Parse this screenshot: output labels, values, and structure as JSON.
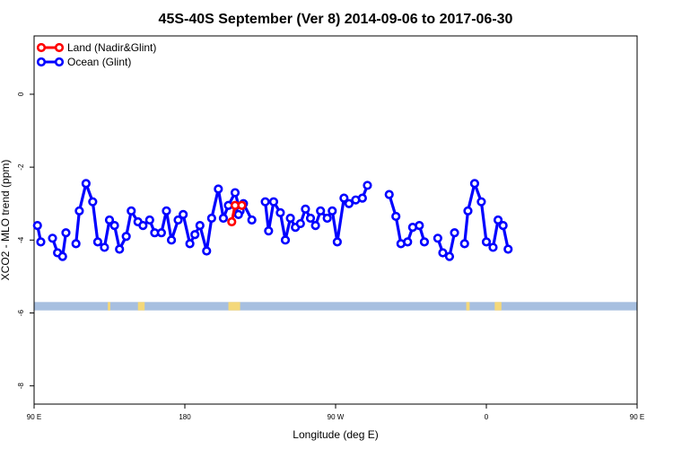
{
  "chart_data": {
    "type": "line",
    "title": "45S-40S September (Ver 8)   2014-09-06 to 2017-06-30",
    "xlabel": "Longitude (deg E)",
    "ylabel": "XCO2 - MLO trend (ppm)",
    "xlim": [
      90,
      450
    ],
    "ylim": [
      -8.5,
      1.6
    ],
    "x_ticks": [
      {
        "value": 90,
        "label": "90 E"
      },
      {
        "value": 180,
        "label": "180"
      },
      {
        "value": 270,
        "label": "90 W"
      },
      {
        "value": 360,
        "label": "0"
      },
      {
        "value": 450,
        "label": "90 E"
      },
      {
        "value": 540,
        "label": "180"
      }
    ],
    "y_ticks": [
      {
        "value": 0,
        "label": "0"
      },
      {
        "value": -2,
        "label": "-2"
      },
      {
        "value": -4,
        "label": "-4"
      },
      {
        "value": -6,
        "label": "-6"
      },
      {
        "value": -8,
        "label": "-8"
      }
    ],
    "legend_position": "top-left",
    "series": [
      {
        "name": "Land (Nadir&Glint)",
        "color": "#ff0000",
        "segments": [
          [
            [
              208,
              -3.5
            ],
            [
              210,
              -3.05
            ],
            [
              214,
              -3.05
            ]
          ]
        ]
      },
      {
        "name": "Ocean (Glint)",
        "color": "#0000ff",
        "segments": [
          [
            [
              92,
              -3.6
            ],
            [
              94,
              -4.05
            ]
          ],
          [
            [
              101,
              -3.95
            ],
            [
              104,
              -4.35
            ],
            [
              107,
              -4.45
            ],
            [
              109,
              -3.8
            ]
          ],
          [
            [
              115,
              -4.1
            ],
            [
              117,
              -3.2
            ],
            [
              121,
              -2.45
            ],
            [
              125,
              -2.95
            ],
            [
              128,
              -4.05
            ],
            [
              132,
              -4.2
            ],
            [
              135,
              -3.45
            ],
            [
              138,
              -3.6
            ],
            [
              141,
              -4.25
            ],
            [
              145,
              -3.9
            ],
            [
              148,
              -3.2
            ],
            [
              152,
              -3.5
            ],
            [
              155,
              -3.6
            ],
            [
              159,
              -3.45
            ],
            [
              162,
              -3.8
            ],
            [
              166,
              -3.8
            ],
            [
              169,
              -3.2
            ],
            [
              172,
              -4.0
            ],
            [
              176,
              -3.45
            ],
            [
              179,
              -3.3
            ],
            [
              183,
              -4.1
            ],
            [
              186,
              -3.85
            ],
            [
              189,
              -3.6
            ],
            [
              193,
              -4.3
            ],
            [
              196,
              -3.4
            ],
            [
              200,
              -2.6
            ],
            [
              203,
              -3.4
            ],
            [
              206,
              -3.05
            ],
            [
              210,
              -2.7
            ],
            [
              213,
              -3.2
            ]
          ],
          [
            [
              212,
              -3.3
            ],
            [
              215,
              -3.0
            ],
            [
              220,
              -3.45
            ]
          ],
          [
            [
              228,
              -2.95
            ],
            [
              230,
              -3.75
            ],
            [
              233,
              -2.95
            ],
            [
              237,
              -3.25
            ],
            [
              240,
              -4.0
            ],
            [
              243,
              -3.4
            ],
            [
              246,
              -3.65
            ],
            [
              249,
              -3.55
            ],
            [
              252,
              -3.15
            ],
            [
              255,
              -3.4
            ],
            [
              258,
              -3.6
            ],
            [
              261,
              -3.2
            ],
            [
              265,
              -3.4
            ],
            [
              268,
              -3.2
            ],
            [
              271,
              -4.05
            ],
            [
              275,
              -2.85
            ],
            [
              278,
              -3.0
            ],
            [
              282,
              -2.9
            ],
            [
              286,
              -2.85
            ],
            [
              289,
              -2.5
            ]
          ],
          [
            [
              302,
              -2.75
            ],
            [
              306,
              -3.35
            ],
            [
              309,
              -4.1
            ],
            [
              313,
              -4.05
            ],
            [
              316,
              -3.65
            ],
            [
              320,
              -3.6
            ],
            [
              323,
              -4.05
            ]
          ],
          [
            [
              331,
              -3.95
            ],
            [
              334,
              -4.35
            ],
            [
              338,
              -4.45
            ],
            [
              341,
              -3.8
            ]
          ],
          [
            [
              347,
              -4.1
            ],
            [
              349,
              -3.2
            ],
            [
              353,
              -2.45
            ],
            [
              357,
              -2.95
            ],
            [
              360,
              -4.05
            ],
            [
              364,
              -4.2
            ],
            [
              367,
              -3.45
            ],
            [
              370,
              -3.6
            ],
            [
              373,
              -4.25
            ]
          ]
        ]
      }
    ],
    "bottom_band": {
      "y_range": [
        -5.93,
        -5.7
      ],
      "ocean_color": "#a7bfe0",
      "land_color": "#f4d87a",
      "land_spans": [
        [
          134,
          135.5
        ],
        [
          152,
          156
        ],
        [
          206,
          213
        ],
        [
          348,
          350
        ],
        [
          365,
          369
        ]
      ]
    }
  }
}
